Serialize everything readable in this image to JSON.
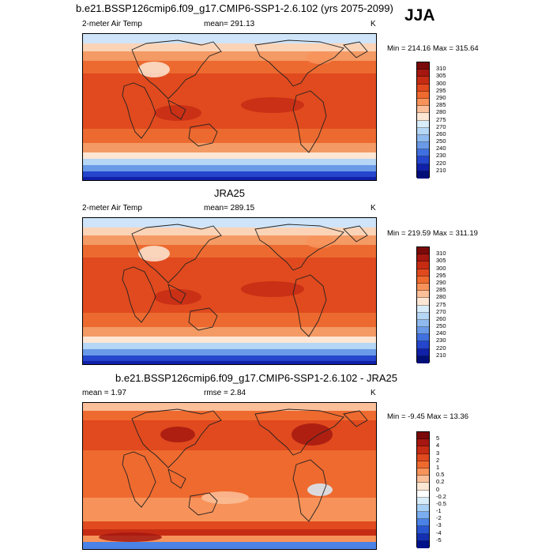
{
  "season": "JJA",
  "panels": [
    {
      "title": "b.e21.BSSP126cmip6.f09_g17.CMIP6-SSP1-2.6.102 (yrs 2075-2099)",
      "variable": "2-meter Air Temp",
      "stat": "mean= 291.13",
      "stat2": "",
      "units": "K",
      "minmax": "Min = 214.16 Max = 315.64",
      "colorbar_labels": [
        "310",
        "305",
        "300",
        "295",
        "290",
        "285",
        "280",
        "275",
        "270",
        "260",
        "250",
        "240",
        "230",
        "220",
        "210"
      ],
      "colorbar_colors": [
        "#7a0a0a",
        "#a51710",
        "#c62c14",
        "#e04a1e",
        "#ef6a2f",
        "#f7935a",
        "#fbbf9a",
        "#fde6d4",
        "#d8ecfa",
        "#b5d6f5",
        "#8fbaf0",
        "#6a99e8",
        "#4070e0",
        "#2445cc",
        "#1020a8",
        "#000f78"
      ]
    },
    {
      "title": "JRA25",
      "variable": "2-meter Air Temp",
      "stat": "mean= 289.15",
      "stat2": "",
      "units": "K",
      "minmax": "Min = 219.59 Max = 311.19",
      "colorbar_labels": [
        "310",
        "305",
        "300",
        "295",
        "290",
        "285",
        "280",
        "275",
        "270",
        "260",
        "250",
        "240",
        "230",
        "220",
        "210"
      ],
      "colorbar_colors": [
        "#7a0a0a",
        "#a51710",
        "#c62c14",
        "#e04a1e",
        "#ef6a2f",
        "#f7935a",
        "#fbbf9a",
        "#fde6d4",
        "#d8ecfa",
        "#b5d6f5",
        "#8fbaf0",
        "#6a99e8",
        "#4070e0",
        "#2445cc",
        "#1020a8",
        "#000f78"
      ]
    },
    {
      "title": "b.e21.BSSP126cmip6.f09_g17.CMIP6-SSP1-2.6.102 - JRA25",
      "variable": "mean =   1.97",
      "stat": "rmse =   2.84",
      "stat2": "",
      "units": "K",
      "minmax": "Min =  -9.45 Max =  13.36",
      "colorbar_labels": [
        "5",
        "4",
        "3",
        "2",
        "1",
        "0.5",
        "0.2",
        "0",
        "-0.2",
        "-0.5",
        "-1",
        "-2",
        "-3",
        "-4",
        "-5"
      ],
      "colorbar_colors": [
        "#7a0a0a",
        "#a51710",
        "#c62c14",
        "#e04a1e",
        "#ef6a2f",
        "#f7935a",
        "#fbbf9a",
        "#fde6d4",
        "#ffffff",
        "#d8ecfa",
        "#a8cff5",
        "#7aaef0",
        "#4a82e6",
        "#2a55d0",
        "#1430b0",
        "#00128a"
      ]
    }
  ]
}
